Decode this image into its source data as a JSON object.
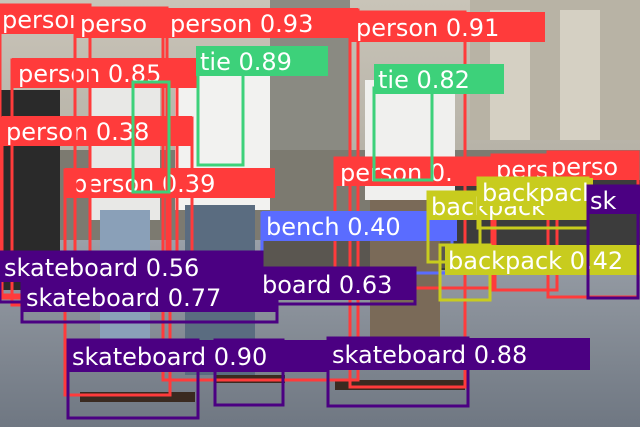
{
  "colors": {
    "person": "#ff3b3b",
    "tie": "#3dd17a",
    "bench": "#5a6cff",
    "backpack": "#c8cc1e",
    "skateboard": "#4b0082"
  },
  "detections": [
    {
      "label": "person 0.93",
      "cls": "person"
    },
    {
      "label": "person 0.91",
      "cls": "person"
    },
    {
      "label": "person 0.85",
      "cls": "person"
    },
    {
      "label": "person 0.38",
      "cls": "person"
    },
    {
      "label": "person 0.39",
      "cls": "person"
    },
    {
      "label": "person 0.",
      "cls": "person"
    },
    {
      "label": "person",
      "cls": "person"
    },
    {
      "label": "perso",
      "cls": "person"
    },
    {
      "label": "perso",
      "cls": "person"
    },
    {
      "label": "tie 0.89",
      "cls": "tie"
    },
    {
      "label": "tie 0.82",
      "cls": "tie"
    },
    {
      "label": "bench 0.40",
      "cls": "bench"
    },
    {
      "label": "backpack",
      "cls": "backpack"
    },
    {
      "label": "backpack 0.42",
      "cls": "backpack"
    },
    {
      "label": "skateboard 0.56",
      "cls": "skateboard"
    },
    {
      "label": "skateboard 0.77",
      "cls": "skateboard"
    },
    {
      "label": "board 0.63",
      "cls": "skateboard"
    },
    {
      "label": "skateboard 0.90",
      "cls": "skateboard"
    },
    {
      "label": "skateboard 0.88",
      "cls": "skateboard"
    },
    {
      "label": "sk",
      "cls": "skateboard"
    }
  ]
}
